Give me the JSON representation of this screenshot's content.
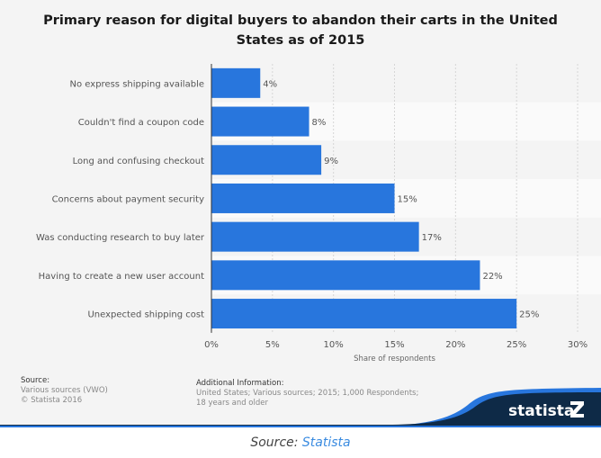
{
  "chart_data": {
    "type": "bar",
    "orientation": "horizontal",
    "title": "Primary reason for digital buyers to abandon their carts in the United States as of 2015",
    "categories": [
      "No express shipping available",
      "Couldn't find a coupon code",
      "Long and confusing checkout",
      "Concerns about payment security",
      "Was conducting research to buy later",
      "Having to create a new user account",
      "Unexpected shipping cost"
    ],
    "values": [
      4,
      8,
      9,
      15,
      17,
      22,
      25
    ],
    "data_labels": [
      "4%",
      "8%",
      "9%",
      "15%",
      "17%",
      "22%",
      "25%"
    ],
    "xlabel": "Share of respondents",
    "xlim": [
      0,
      30
    ],
    "xticks": [
      "0%",
      "5%",
      "10%",
      "15%",
      "20%",
      "25%",
      "30%"
    ],
    "grid": true,
    "bar_color": "#2876dd"
  },
  "footer": {
    "source_heading": "Source:",
    "source_lines": [
      "Various sources (VWO)",
      "© Statista 2016"
    ],
    "additional_heading": "Additional Information:",
    "additional_text": "United States; Various sources; 2015; 1,000 Respondents; 18 years and older",
    "brand": "statista"
  },
  "caption": {
    "prefix": "Source: ",
    "link": "Statista"
  }
}
